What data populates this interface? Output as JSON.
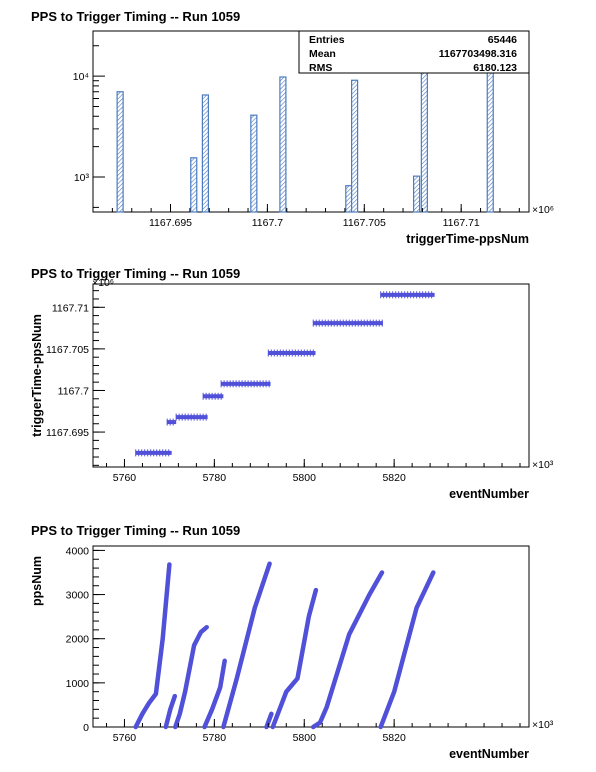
{
  "chart_data": [
    {
      "type": "bar",
      "title": "PPS to Trigger Timing -- Run 1059",
      "xlabel": "triggerTime-ppsNum",
      "ylabel": "",
      "x_multiplier": "×10⁶",
      "log_y": true,
      "xlim": [
        1167.691,
        1167.7135
      ],
      "ylim": [
        450,
        28000
      ],
      "x_ticks": [
        "1167.695",
        "1167.7",
        "1167.705",
        "1167.71"
      ],
      "y_ticks": [
        "10⁴",
        "10³"
      ],
      "x_tick_values": [
        1167.695,
        1167.7,
        1167.705,
        1167.71
      ],
      "y_tick_values": [
        10000,
        1000
      ],
      "bins": [
        {
          "x": 1167.6924,
          "value": 7000
        },
        {
          "x": 1167.6962,
          "value": 1550
        },
        {
          "x": 1167.6968,
          "value": 6500
        },
        {
          "x": 1167.6993,
          "value": 4100
        },
        {
          "x": 1167.7008,
          "value": 9800
        },
        {
          "x": 1167.7042,
          "value": 820
        },
        {
          "x": 1167.7045,
          "value": 9100
        },
        {
          "x": 1167.7077,
          "value": 1020
        },
        {
          "x": 1167.7081,
          "value": 14000
        },
        {
          "x": 1167.7115,
          "value": 12500
        }
      ],
      "stats": {
        "title": "",
        "rows": [
          {
            "label": "Entries",
            "value": "65446"
          },
          {
            "label": "Mean",
            "value": "1167703498.316"
          },
          {
            "label": "RMS",
            "value": "6180.123"
          }
        ]
      },
      "colors": {
        "line": "#4b7bbf"
      }
    },
    {
      "type": "scatter",
      "title": "PPS to Trigger Timing -- Run 1059",
      "xlabel": "eventNumber",
      "ylabel": "triggerTime-ppsNum",
      "x_multiplier": "×10³",
      "y_multiplier": "×10⁶",
      "xlim": [
        5753,
        5850
      ],
      "ylim": [
        1167.6908,
        1167.7128
      ],
      "x_ticks": [
        "5760",
        "5780",
        "5800",
        "5820"
      ],
      "y_ticks": [
        "1167.695",
        "1167.7",
        "1167.705",
        "1167.71"
      ],
      "x_tick_values": [
        5760,
        5780,
        5800,
        5820
      ],
      "y_tick_values": [
        1167.695,
        1167.7,
        1167.705,
        1167.71
      ],
      "segments": [
        {
          "x0": 5762.5,
          "x1": 5770.5,
          "y": 1167.6925
        },
        {
          "x0": 5769.5,
          "x1": 5771.5,
          "y": 1167.6962
        },
        {
          "x0": 5771.5,
          "x1": 5778.5,
          "y": 1167.6968
        },
        {
          "x0": 5777.5,
          "x1": 5782.0,
          "y": 1167.6993
        },
        {
          "x0": 5781.5,
          "x1": 5792.5,
          "y": 1167.7008
        },
        {
          "x0": 5792.0,
          "x1": 5802.5,
          "y": 1167.7045
        },
        {
          "x0": 5802.0,
          "x1": 5817.5,
          "y": 1167.7081
        },
        {
          "x0": 5817.0,
          "x1": 5829.0,
          "y": 1167.7115
        }
      ],
      "colors": {
        "marker": "#5050d8"
      }
    },
    {
      "type": "scatter",
      "title": "PPS to Trigger Timing -- Run 1059",
      "xlabel": "eventNumber",
      "ylabel": "ppsNum",
      "x_multiplier": "×10³",
      "xlim": [
        5753,
        5850
      ],
      "ylim": [
        0,
        4100
      ],
      "x_ticks": [
        "5760",
        "5780",
        "5800",
        "5820"
      ],
      "y_ticks": [
        "0",
        "1000",
        "2000",
        "3000",
        "4000"
      ],
      "x_tick_values": [
        5760,
        5780,
        5800,
        5820
      ],
      "y_tick_values": [
        0,
        1000,
        2000,
        3000,
        4000
      ],
      "curves": [
        [
          [
            5762.5,
            0
          ],
          [
            5764.0,
            300
          ],
          [
            5765.5,
            550
          ],
          [
            5767.0,
            750
          ],
          [
            5768.5,
            2000
          ],
          [
            5770.0,
            3680
          ]
        ],
        [
          [
            5769.2,
            0
          ],
          [
            5770.2,
            400
          ],
          [
            5771.2,
            700
          ]
        ],
        [
          [
            5771.3,
            0
          ],
          [
            5772.3,
            300
          ],
          [
            5773.5,
            800
          ],
          [
            5775.5,
            1850
          ],
          [
            5777.0,
            2150
          ],
          [
            5778.3,
            2260
          ]
        ],
        [
          [
            5777.8,
            0
          ],
          [
            5779.5,
            400
          ],
          [
            5781.3,
            900
          ],
          [
            5782.3,
            1500
          ]
        ],
        [
          [
            5782.0,
            0
          ],
          [
            5785.0,
            1100
          ],
          [
            5789.0,
            2700
          ],
          [
            5792.3,
            3700
          ]
        ],
        [
          [
            5791.6,
            0
          ],
          [
            5792.7,
            300
          ]
        ],
        [
          [
            5793.0,
            0
          ],
          [
            5796.0,
            800
          ],
          [
            5798.5,
            1100
          ],
          [
            5801.0,
            2500
          ],
          [
            5802.6,
            3100
          ]
        ],
        [
          [
            5802.0,
            0
          ],
          [
            5803.5,
            100
          ],
          [
            5805.0,
            450
          ],
          [
            5810.0,
            2100
          ],
          [
            5814.5,
            3000
          ],
          [
            5817.3,
            3500
          ]
        ],
        [
          [
            5817.0,
            0
          ],
          [
            5820.0,
            800
          ],
          [
            5825.0,
            2700
          ],
          [
            5828.7,
            3500
          ]
        ]
      ],
      "colors": {
        "marker": "#5050d8"
      }
    }
  ]
}
